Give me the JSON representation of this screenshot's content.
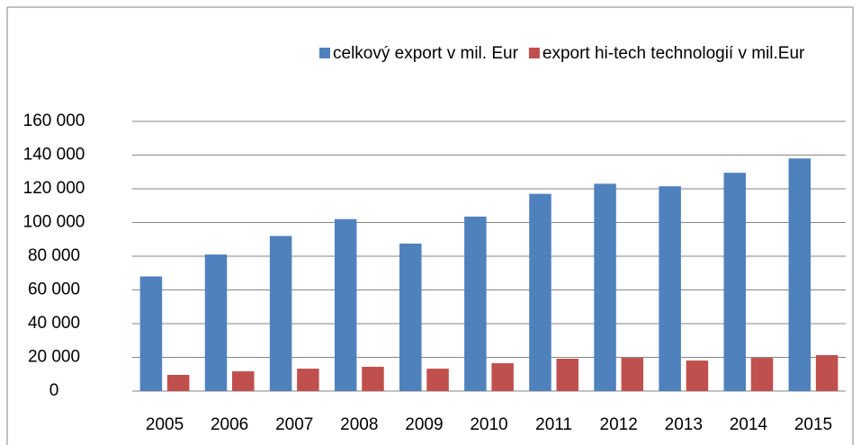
{
  "chart_data": {
    "type": "bar",
    "categories": [
      "2005",
      "2006",
      "2007",
      "2008",
      "2009",
      "2010",
      "2011",
      "2012",
      "2013",
      "2014",
      "2015"
    ],
    "series": [
      {
        "name": "celkový export v mil. Eur",
        "color": "#4f81bd",
        "values": [
          68000,
          81000,
          92000,
          102000,
          87500,
          103500,
          117000,
          123000,
          121500,
          129500,
          138000
        ]
      },
      {
        "name": "export hi-tech technologií v mil.Eur",
        "color": "#c0504d",
        "values": [
          9600,
          11700,
          13300,
          14400,
          13300,
          16500,
          19200,
          19700,
          18100,
          19700,
          21300
        ]
      }
    ],
    "ylim": [
      0,
      160000
    ],
    "yticks": [
      0,
      {
        "value": 20000,
        "label": "20 000"
      },
      {
        "value": 40000,
        "label": "40 000"
      },
      {
        "value": 60000,
        "label": "60 000"
      },
      {
        "value": 80000,
        "label": "80 000"
      },
      {
        "value": 100000,
        "label": "100 000"
      },
      {
        "value": 120000,
        "label": "120 000"
      },
      {
        "value": 140000,
        "label": "140 000"
      },
      {
        "value": 160000,
        "label": "160 000"
      }
    ],
    "grid": true,
    "legend": "top"
  }
}
